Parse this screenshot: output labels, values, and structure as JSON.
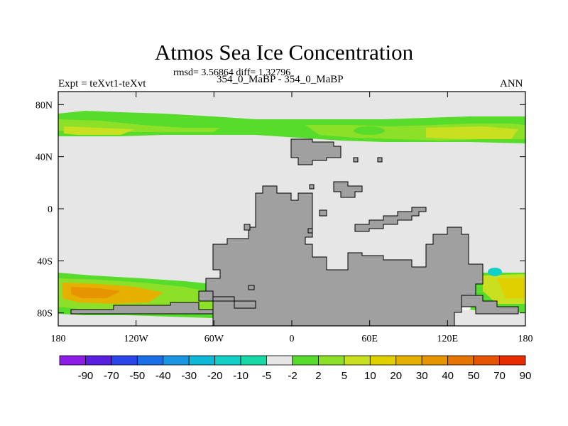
{
  "chart_data": {
    "type": "heatmap",
    "title": "Atmos Sea Ice Concentration",
    "stats": "rmsd= 3.56864 diff= 1.32796",
    "subtitle_left": "Expt = teXvt1-teXvt",
    "subtitle_center": "354_0_MaBP - 354_0_MaBP",
    "subtitle_right": "ANN",
    "x_ticks": [
      "180",
      "120W",
      "60W",
      "0",
      "60E",
      "120E",
      "180"
    ],
    "y_ticks": [
      "80N",
      "40N",
      "0",
      "40S",
      "80S"
    ],
    "xlim": [
      -180,
      180
    ],
    "ylim": [
      -90,
      90
    ],
    "colorbar": {
      "labels": [
        "-90",
        "-70",
        "-50",
        "-40",
        "-30",
        "-20",
        "-10",
        "-5",
        "-2",
        "2",
        "5",
        "10",
        "20",
        "30",
        "40",
        "50",
        "70",
        "90"
      ],
      "colors": [
        "#8c1ce6",
        "#5a1ee0",
        "#2a46e6",
        "#1a6ee6",
        "#1a96e0",
        "#10b8d8",
        "#10d0c8",
        "#18d8a8",
        "#e6e6e6",
        "#58dc2c",
        "#8ce028",
        "#c8e020",
        "#e0d000",
        "#e6b000",
        "#e69400",
        "#e67400",
        "#e65400",
        "#e62c00"
      ]
    },
    "background_color": "#e6e6e6",
    "land_color": "#a0a0a0"
  }
}
